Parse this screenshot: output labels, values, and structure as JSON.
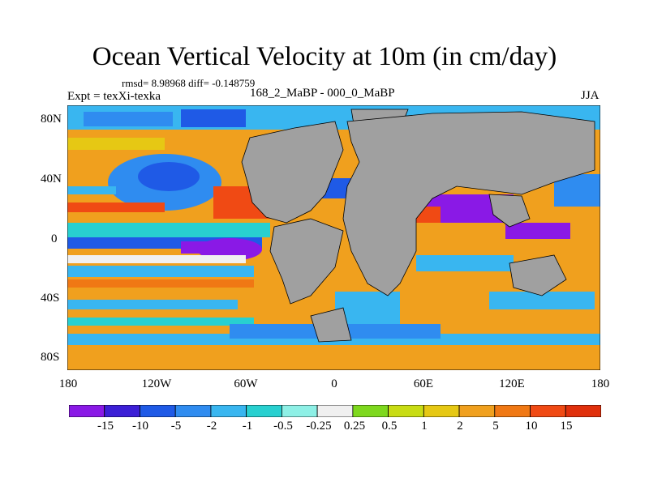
{
  "title": "Ocean Vertical Velocity at 10m (in cm/day)",
  "stats": "rmsd= 8.98968  diff= -0.148759",
  "experiment": "Expt = texXi-texka",
  "comparison": "168_2_MaBP - 000_0_MaBP",
  "season": "JJA",
  "y_axis_labels": [
    "80N",
    "40N",
    "0",
    "40S",
    "80S"
  ],
  "x_axis_labels": [
    "180",
    "120W",
    "60W",
    "0",
    "60E",
    "120E",
    "180"
  ],
  "colorbar": {
    "labels": [
      "-15",
      "-10",
      "-5",
      "-2",
      "-1",
      "-0.5",
      "-0.25",
      "0.25",
      "0.5",
      "1",
      "2",
      "5",
      "10",
      "15"
    ],
    "colors": [
      "#8a19e6",
      "#3c1fd6",
      "#1f5ae6",
      "#2f8cf0",
      "#39b6f0",
      "#28d0d0",
      "#8ef0e6",
      "#f0f0f0",
      "#7ed81e",
      "#c8dc14",
      "#e6c814",
      "#f0a01e",
      "#f07814",
      "#f04a14",
      "#e0300c"
    ]
  },
  "colors": {
    "land": "#a0a0a0",
    "coast": "#000000"
  }
}
